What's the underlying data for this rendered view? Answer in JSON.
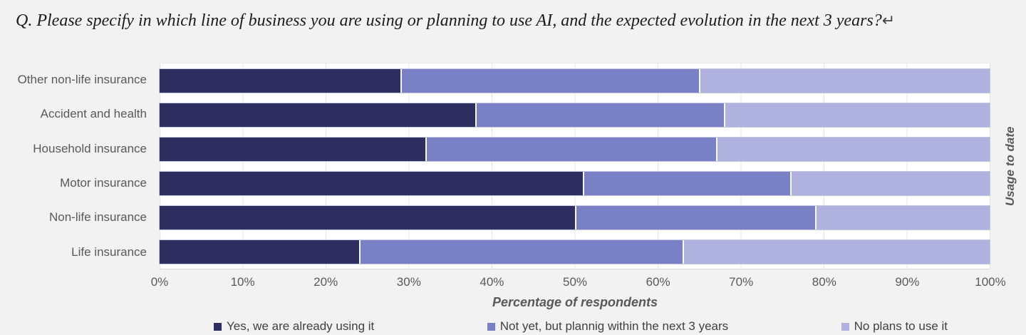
{
  "title": {
    "text": "Q. Please specify in which line of business you are using or planning to use AI, and the expected evolution in the next 3 years?",
    "return_mark": "↵"
  },
  "chart_data": {
    "type": "bar",
    "stacked": true,
    "orientation": "horizontal",
    "categories": [
      "Other non-life insurance",
      "Accident and health",
      "Household insurance",
      "Motor insurance",
      "Non-life insurance",
      "Life insurance"
    ],
    "series": [
      {
        "name": "Yes, we are already using it",
        "color": "#2e2f60",
        "values": [
          29,
          38,
          32,
          51,
          50,
          24
        ]
      },
      {
        "name": "Not yet, but plannig within the next 3 years",
        "color": "#7a80c5",
        "values": [
          36,
          30,
          35,
          25,
          29,
          39
        ]
      },
      {
        "name": "No plans to use it",
        "color": "#b0b2e0",
        "values": [
          35,
          32,
          33,
          24,
          21,
          37
        ]
      }
    ],
    "x_ticks": [
      "0%",
      "10%",
      "20%",
      "30%",
      "40%",
      "50%",
      "60%",
      "70%",
      "80%",
      "90%",
      "100%"
    ],
    "xlim": [
      0,
      100
    ],
    "xlabel": "Percentage of respondents",
    "right_axis_label": "Usage to date",
    "grid": true,
    "legend_position": "bottom"
  }
}
